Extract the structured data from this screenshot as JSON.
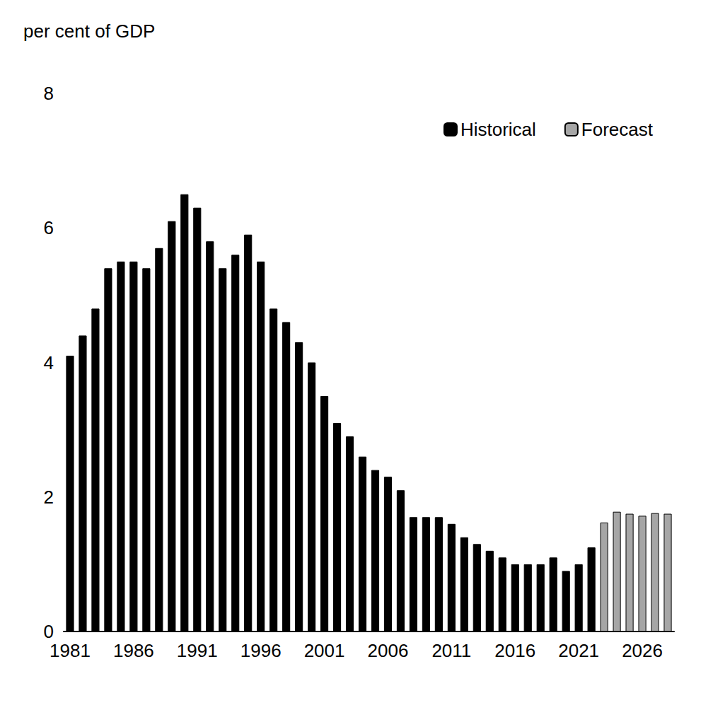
{
  "chart_data": {
    "type": "bar",
    "y_label": "per cent of GDP",
    "categories": [
      "1981",
      null,
      null,
      null,
      null,
      "1986",
      null,
      null,
      null,
      null,
      "1991",
      null,
      null,
      null,
      null,
      "1996",
      null,
      null,
      null,
      null,
      "2001",
      null,
      null,
      null,
      null,
      "2006",
      null,
      null,
      null,
      null,
      "2011",
      null,
      null,
      null,
      null,
      "2016",
      null,
      null,
      null,
      null,
      "2021",
      null,
      null,
      null,
      null,
      "2026",
      null,
      null
    ],
    "series": [
      {
        "name": "Historical",
        "color": "#000000",
        "values": [
          4.1,
          4.4,
          4.8,
          5.4,
          5.5,
          5.5,
          5.4,
          5.7,
          6.1,
          6.5,
          6.3,
          5.8,
          5.4,
          5.6,
          5.9,
          5.5,
          4.8,
          4.6,
          4.3,
          4.0,
          3.5,
          3.1,
          2.9,
          2.6,
          2.4,
          2.3,
          2.1,
          1.7,
          1.7,
          1.7,
          1.6,
          1.4,
          1.3,
          1.2,
          1.1,
          1.0,
          1.0,
          1.0,
          1.1,
          0.9,
          1.0,
          1.25,
          null,
          null,
          null,
          null,
          null,
          null
        ]
      },
      {
        "name": "Forecast",
        "color": "#a6a6a6",
        "values": [
          null,
          null,
          null,
          null,
          null,
          null,
          null,
          null,
          null,
          null,
          null,
          null,
          null,
          null,
          null,
          null,
          null,
          null,
          null,
          null,
          null,
          null,
          null,
          null,
          null,
          null,
          null,
          null,
          null,
          null,
          null,
          null,
          null,
          null,
          null,
          null,
          null,
          null,
          null,
          null,
          null,
          null,
          1.62,
          1.78,
          1.75,
          1.72,
          1.76,
          1.75
        ]
      }
    ],
    "ylim": [
      0,
      8
    ],
    "yticks": [
      0,
      2,
      4,
      6,
      8
    ],
    "grid": false,
    "legend": "top-right"
  }
}
